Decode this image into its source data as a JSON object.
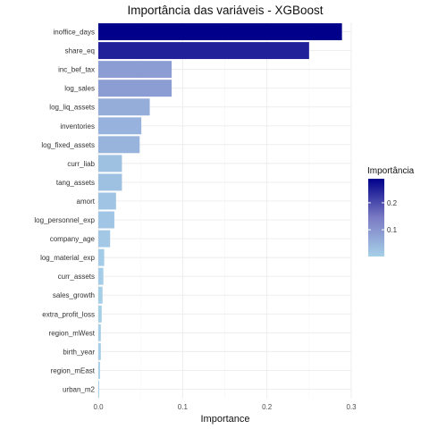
{
  "chart_data": {
    "type": "bar",
    "orientation": "horizontal",
    "title": "Importância das variáveis - XGBoost",
    "xlabel": "Importance",
    "ylabel": "",
    "xlim": [
      0,
      0.3
    ],
    "x_ticks": [
      0.0,
      0.1,
      0.2,
      0.3
    ],
    "x_tick_labels": [
      "0.0",
      "0.1",
      "0.2",
      "0.3"
    ],
    "grid": true,
    "categories": [
      "inoffice_days",
      "share_eq",
      "inc_bef_tax",
      "log_sales",
      "log_liq_assets",
      "inventories",
      "log_fixed_assets",
      "curr_liab",
      "tang_assets",
      "amort",
      "log_personnel_exp",
      "company_age",
      "log_material_exp",
      "curr_assets",
      "sales_growth",
      "extra_profit_loss",
      "region_mWest",
      "birth_year",
      "region_mEast",
      "urban_m2"
    ],
    "values": [
      0.289,
      0.25,
      0.087,
      0.087,
      0.061,
      0.051,
      0.049,
      0.028,
      0.028,
      0.021,
      0.019,
      0.014,
      0.007,
      0.006,
      0.005,
      0.004,
      0.003,
      0.003,
      0.002,
      0.001
    ],
    "legend": {
      "title": "Importância",
      "position": "right",
      "ticks": [
        0.1,
        0.2
      ],
      "tick_labels": [
        "0.1",
        "0.2"
      ],
      "low_color": "#a6d0e8",
      "mid_color": "#7b7bc4",
      "high_color": "#00008b"
    }
  }
}
